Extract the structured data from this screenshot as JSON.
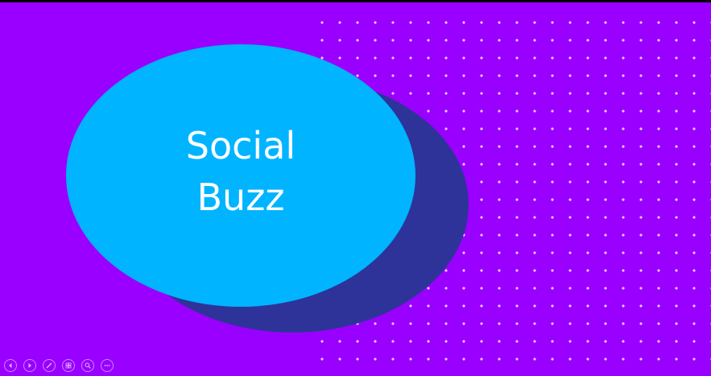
{
  "slide": {
    "title_line1": "Social",
    "title_line2": "Buzz"
  },
  "colors": {
    "background": "#9900ff",
    "main_oval": "#00b4ff",
    "shadow_oval": "#2e3399",
    "dots": "#f2c9ff",
    "title_text": "#ffffff"
  },
  "presenter_controls": [
    {
      "name": "previous-slide",
      "icon": "arrow-left-icon"
    },
    {
      "name": "next-slide",
      "icon": "arrow-right-icon"
    },
    {
      "name": "pen-tool",
      "icon": "pen-icon"
    },
    {
      "name": "see-all-slides",
      "icon": "slides-grid-icon"
    },
    {
      "name": "zoom",
      "icon": "magnifier-icon"
    },
    {
      "name": "more-options",
      "icon": "ellipsis-icon"
    }
  ]
}
